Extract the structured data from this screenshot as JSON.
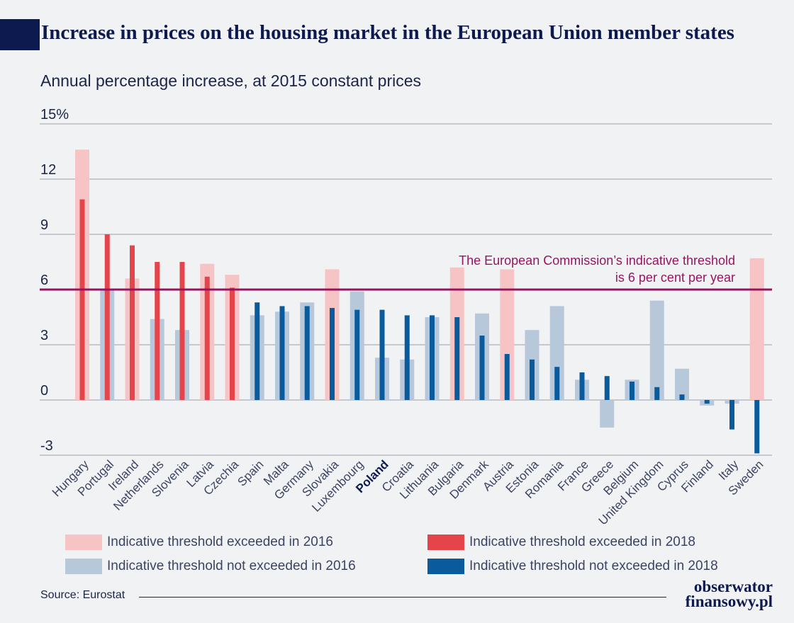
{
  "title": "Increase in prices on the housing market in the European Union member states",
  "subtitle": "Annual percentage increase, at 2015 constant prices",
  "source": "Source: Eurostat",
  "logo": {
    "line1": "obserwator",
    "line2": "finansowy.pl"
  },
  "colors": {
    "exceeded_2016": "#f7c4c6",
    "exceeded_2018": "#e5444b",
    "not_exceeded_2016": "#b7c8da",
    "not_exceeded_2018": "#0a5b9c",
    "threshold": "#97155f",
    "highlight_label": "#0d1a4f"
  },
  "legend": [
    {
      "key": "exceeded_2016",
      "label": "Indicative threshold exceeded in 2016"
    },
    {
      "key": "exceeded_2018",
      "label": "Indicative threshold exceeded in 2018"
    },
    {
      "key": "not_exceeded_2016",
      "label": "Indicative threshold not exceeded in 2016"
    },
    {
      "key": "not_exceeded_2018",
      "label": "Indicative threshold not exceeded in 2018"
    }
  ],
  "chart_data": {
    "type": "bar",
    "title": "Increase in prices on the housing market in the European Union member states",
    "subtitle": "Annual percentage increase, at 2015 constant prices",
    "ylim": [
      -3,
      15
    ],
    "yticks": [
      -3,
      0,
      3,
      6,
      9,
      12,
      15
    ],
    "ytick_labels": [
      "-3",
      "0",
      "3",
      "6",
      "9",
      "12",
      "15%"
    ],
    "grid": true,
    "threshold": {
      "value": 6,
      "label_line1": "The European Commission’s indicative threshold",
      "label_line2": "is 6 per cent per year"
    },
    "highlight_category": "Poland",
    "categories": [
      "Hungary",
      "Portugal",
      "Ireland",
      "Netherlands",
      "Slovenia",
      "Latvia",
      "Czechia",
      "Spain",
      "Malta",
      "Germany",
      "Slovakia",
      "Luxembourg",
      "Poland",
      "Croatia",
      "Lithuania",
      "Bulgaria",
      "Denmark",
      "Austria",
      "Estonia",
      "Romania",
      "France",
      "Greece",
      "Belgium",
      "United Kingdom",
      "Cyprus",
      "Finland",
      "Italy",
      "Sweden"
    ],
    "series": [
      {
        "name": "2016",
        "values": [
          13.6,
          6.0,
          6.6,
          4.4,
          3.8,
          7.4,
          6.8,
          4.6,
          4.8,
          5.3,
          7.1,
          5.9,
          2.3,
          2.2,
          4.5,
          7.2,
          4.7,
          7.1,
          3.8,
          5.1,
          1.1,
          -1.5,
          1.1,
          5.4,
          1.7,
          -0.3,
          -0.2,
          7.7
        ]
      },
      {
        "name": "2018",
        "values": [
          10.9,
          9.0,
          8.4,
          7.5,
          7.5,
          6.7,
          6.1,
          5.3,
          5.1,
          5.1,
          5.0,
          4.9,
          4.9,
          4.6,
          4.6,
          4.5,
          3.5,
          2.5,
          2.2,
          1.8,
          1.5,
          1.3,
          1.0,
          0.7,
          0.3,
          -0.2,
          -1.6,
          -2.9
        ]
      }
    ]
  }
}
